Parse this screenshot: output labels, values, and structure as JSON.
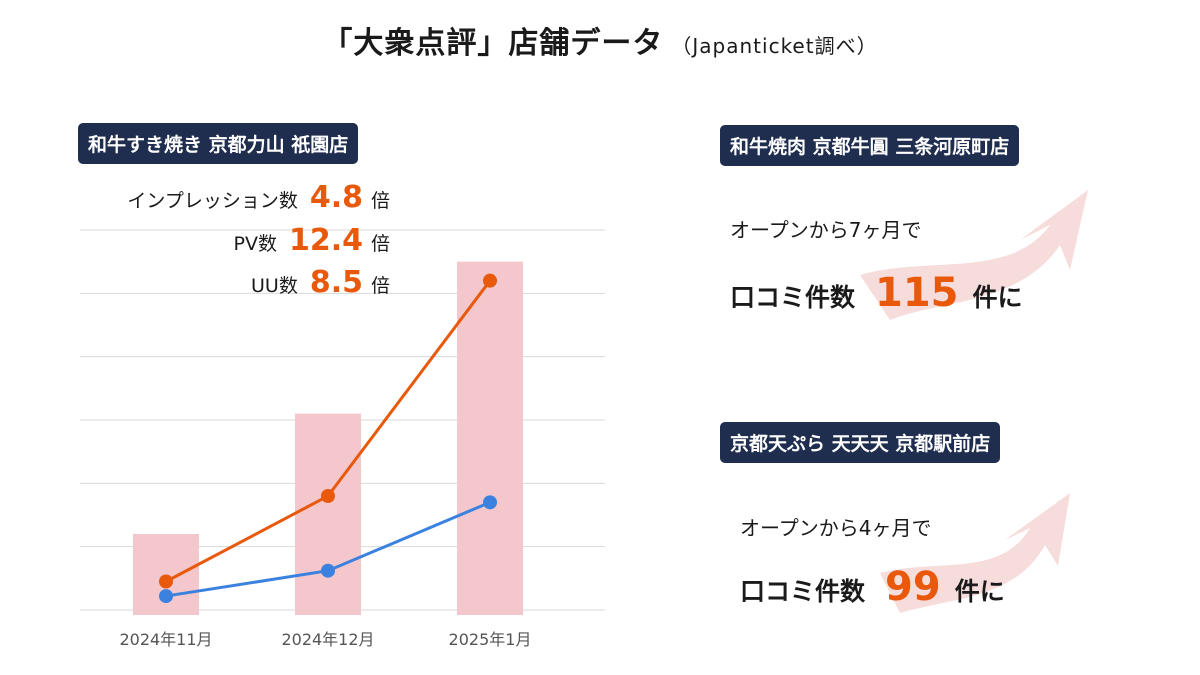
{
  "header": {
    "title": "「大衆点評」店舗データ",
    "source": "（Japanticket調べ）"
  },
  "main_store": {
    "name": "和牛すき焼き 京都力山 祇園店",
    "stats": [
      {
        "label": "インプレッション数",
        "value": "4.8",
        "unit": "倍"
      },
      {
        "label": "PV数",
        "value": "12.4",
        "unit": "倍"
      },
      {
        "label": "UU数",
        "value": "8.5",
        "unit": "倍"
      }
    ]
  },
  "chart_data": {
    "type": "bar+line",
    "categories": [
      "2024年11月",
      "2024年12月",
      "2025年1月"
    ],
    "bar_series": {
      "name": "bars",
      "color": "#f3c7cb",
      "values": [
        1.2,
        3.1,
        5.5
      ]
    },
    "line_series": [
      {
        "name": "orange line",
        "color": "#e8590c",
        "values": [
          0.45,
          1.8,
          5.2
        ]
      },
      {
        "name": "blue line",
        "color": "#3b82e0",
        "values": [
          0.22,
          0.62,
          1.7
        ]
      }
    ],
    "ylim": [
      0,
      6
    ],
    "grid": true,
    "gridlines": 7
  },
  "right_panels": [
    {
      "store": "和牛焼肉 京都牛圓 三条河原町店",
      "open_text": "オープンから7ヶ月で",
      "count_label": "口コミ件数",
      "count_value": "115",
      "count_unit": "件に"
    },
    {
      "store": "京都天ぷら 天天天 京都駅前店",
      "open_text": "オープンから4ヶ月で",
      "count_label": "口コミ件数",
      "count_value": "99",
      "count_unit": "件に"
    }
  ],
  "colors": {
    "badge": "#1f2d4f",
    "accent": "#e8590c",
    "bar": "#f3c7cb",
    "blue": "#3b82e0",
    "arrow": "#f7dcdc"
  }
}
